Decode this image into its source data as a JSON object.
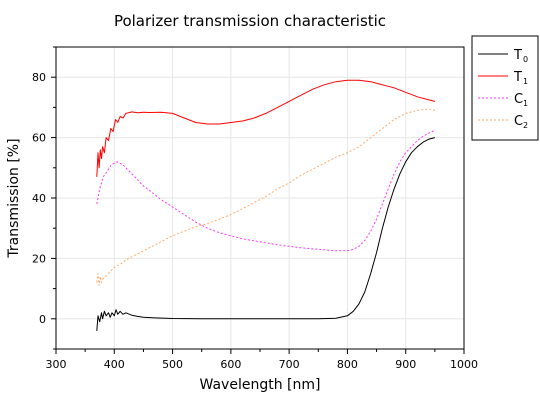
{
  "chart_data": {
    "type": "line",
    "title": "Polarizer transmission characteristic",
    "xlabel": "Wavelength [nm]",
    "ylabel": "Transmission [%]",
    "xlim": [
      300,
      1000
    ],
    "ylim": [
      -10,
      90
    ],
    "xticks": [
      300,
      400,
      500,
      600,
      700,
      800,
      900,
      1000
    ],
    "yticks": [
      0,
      20,
      40,
      60,
      80
    ],
    "grid": true,
    "legend_position": "outside-top-right",
    "series": [
      {
        "name": "T",
        "subscript": "0",
        "color": "#000000",
        "dash": "solid",
        "x": [
          370,
          372,
          375,
          378,
          380,
          383,
          386,
          390,
          393,
          396,
          400,
          403,
          406,
          410,
          415,
          420,
          430,
          440,
          450,
          470,
          500,
          550,
          600,
          650,
          700,
          750,
          780,
          800,
          810,
          820,
          830,
          840,
          850,
          860,
          870,
          880,
          890,
          900,
          910,
          920,
          930,
          940,
          950
        ],
        "y": [
          -4,
          1,
          -1,
          2,
          0,
          2.5,
          1,
          2,
          0.5,
          2,
          1,
          3,
          1.5,
          2.5,
          1.5,
          2,
          1.2,
          0.8,
          0.5,
          0.3,
          0.1,
          0,
          0,
          0,
          0,
          0,
          0.2,
          1,
          2.5,
          5,
          9,
          15,
          22,
          30,
          37,
          43,
          48,
          52,
          55,
          57,
          58.5,
          59.5,
          60
        ]
      },
      {
        "name": "T",
        "subscript": "1",
        "color": "#ff0000",
        "dash": "solid",
        "x": [
          370,
          372,
          374,
          376,
          378,
          380,
          383,
          386,
          390,
          394,
          398,
          402,
          406,
          410,
          415,
          420,
          430,
          440,
          450,
          460,
          480,
          500,
          520,
          540,
          560,
          580,
          600,
          620,
          640,
          660,
          680,
          700,
          720,
          740,
          760,
          780,
          800,
          810,
          820,
          840,
          860,
          880,
          900,
          920,
          940,
          950
        ],
        "y": [
          47,
          55,
          50,
          56,
          53,
          57,
          55,
          60,
          59,
          63,
          62,
          66,
          65,
          67,
          66.5,
          68,
          68.5,
          68.2,
          68.4,
          68.3,
          68.4,
          68,
          66.5,
          65,
          64.5,
          64.5,
          65,
          65.5,
          66.5,
          68,
          70,
          72,
          74,
          76,
          77.5,
          78.5,
          79,
          79,
          79,
          78.5,
          77.5,
          76.5,
          75,
          73.5,
          72.5,
          72
        ]
      },
      {
        "name": "C",
        "subscript": "1",
        "color": "#ff33ff",
        "dash": "2,2",
        "x": [
          370,
          372,
          375,
          378,
          381,
          385,
          390,
          395,
          400,
          405,
          410,
          415,
          420,
          430,
          440,
          450,
          460,
          480,
          500,
          520,
          540,
          560,
          580,
          600,
          620,
          650,
          680,
          700,
          720,
          750,
          780,
          800,
          810,
          820,
          830,
          840,
          850,
          860,
          870,
          880,
          890,
          900,
          910,
          920,
          930,
          940,
          950
        ],
        "y": [
          38,
          40,
          43,
          45,
          47,
          48,
          49.5,
          51,
          51.5,
          52,
          51.5,
          51,
          50,
          48,
          46,
          44,
          42.5,
          39.5,
          37,
          34.5,
          32,
          30,
          28.5,
          27.5,
          26.5,
          25.5,
          24.5,
          24,
          23.5,
          23,
          22.5,
          22.5,
          23,
          24,
          26,
          29,
          33,
          38,
          43,
          48,
          52,
          55,
          57,
          59,
          60.5,
          61.5,
          62.5
        ]
      },
      {
        "name": "C",
        "subscript": "2",
        "color": "#ffaa66",
        "dash": "2,2",
        "x": [
          370,
          372,
          374,
          376,
          378,
          380,
          385,
          390,
          395,
          400,
          410,
          420,
          440,
          460,
          480,
          500,
          520,
          540,
          560,
          580,
          600,
          620,
          640,
          660,
          680,
          700,
          720,
          740,
          760,
          780,
          800,
          820,
          840,
          860,
          880,
          900,
          920,
          940,
          950
        ],
        "y": [
          12,
          15,
          11,
          14,
          12,
          13,
          14,
          15,
          16,
          17,
          18,
          19.5,
          21.5,
          23.5,
          25.5,
          27.5,
          29,
          30.5,
          31.5,
          33,
          34.5,
          36.5,
          38.5,
          40.5,
          43,
          45,
          47.5,
          49.5,
          51.5,
          53.5,
          55,
          57,
          60,
          63,
          66,
          68,
          69,
          69.5,
          69
        ]
      }
    ]
  }
}
